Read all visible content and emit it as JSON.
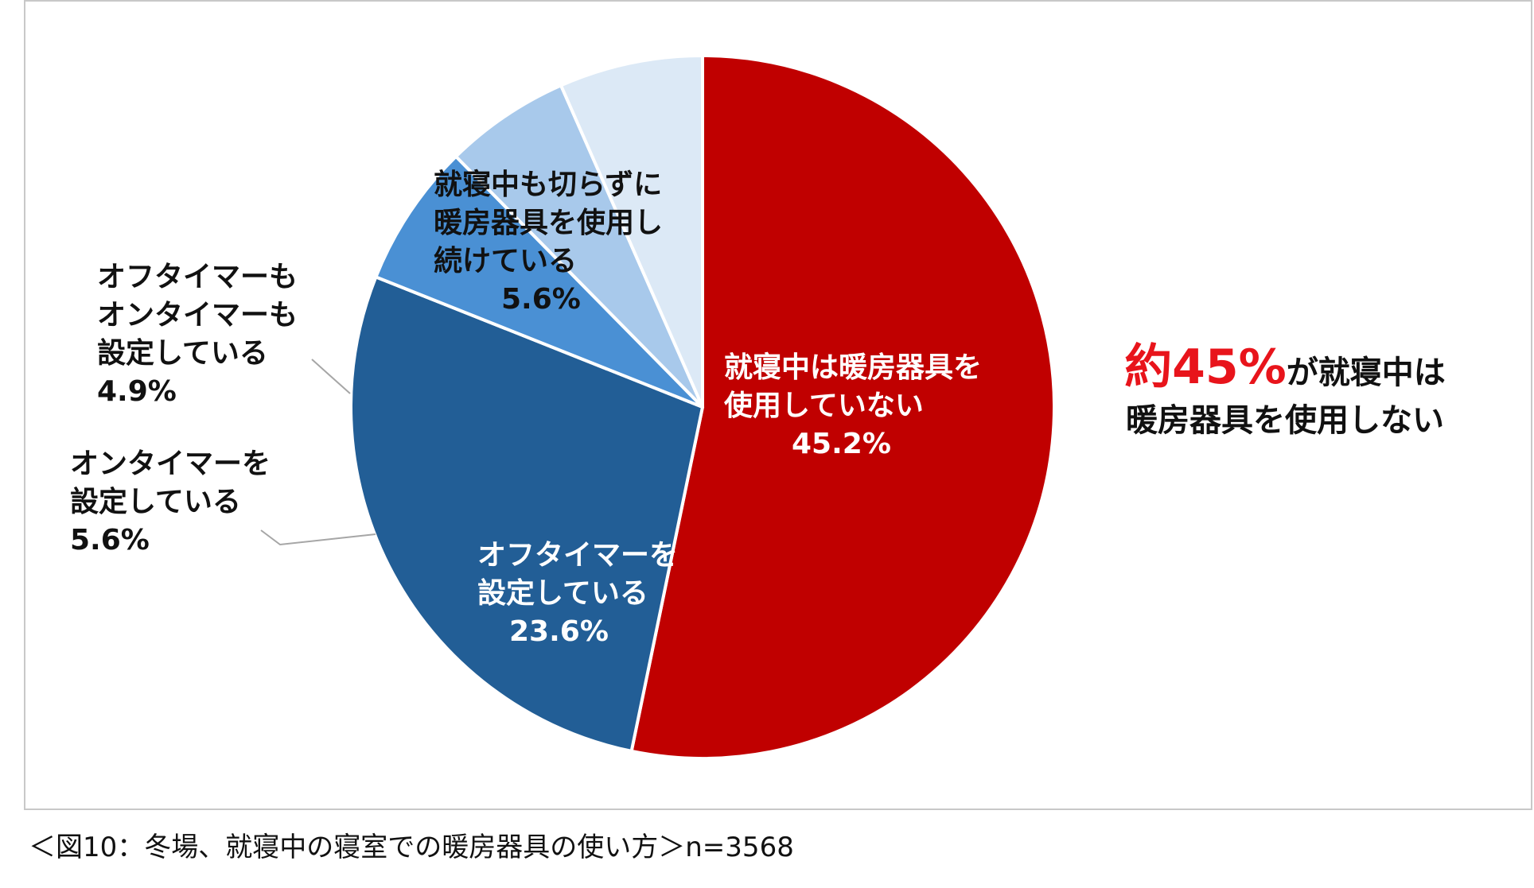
{
  "chart_data": {
    "type": "pie",
    "start": "12 o'clock",
    "direction": "clockwise",
    "slices": [
      {
        "label_lines": [
          "就寝中は暖房器具を",
          "使用していない"
        ],
        "value": 45.2,
        "value_label": "45.2%",
        "color": "#c00000",
        "label_color": "#ffffff"
      },
      {
        "label_lines": [
          "オフタイマーを",
          "設定している"
        ],
        "value": 23.6,
        "value_label": "23.6%",
        "color": "#225e96",
        "label_color": "#ffffff"
      },
      {
        "label_lines": [
          "オンタイマーを",
          "設定している"
        ],
        "value": 5.6,
        "value_label": "5.6%",
        "color": "#4a90d4",
        "label_color": "#111111"
      },
      {
        "label_lines": [
          "オフタイマーも",
          "オンタイマーも",
          "設定している"
        ],
        "value": 4.9,
        "value_label": "4.9%",
        "color": "#a8c9eb",
        "label_color": "#111111"
      },
      {
        "label_lines": [
          "就寝中も切らずに",
          "暖房器具を使用し",
          "続けている"
        ],
        "value": 5.6,
        "value_label": "5.6%",
        "color": "#dce9f6",
        "label_color": "#111111"
      }
    ],
    "leader_line_color": "#a6a6a6",
    "slice_border_color": "#ffffff"
  },
  "callout": {
    "highlight": "約45%",
    "line1_rest": "が就寝中は",
    "line2": "暖房器具を使用しない",
    "highlight_color": "#e8141b"
  },
  "caption": "＜図10：冬場、就寝中の寝室での暖房器具の使い方＞n=3568"
}
